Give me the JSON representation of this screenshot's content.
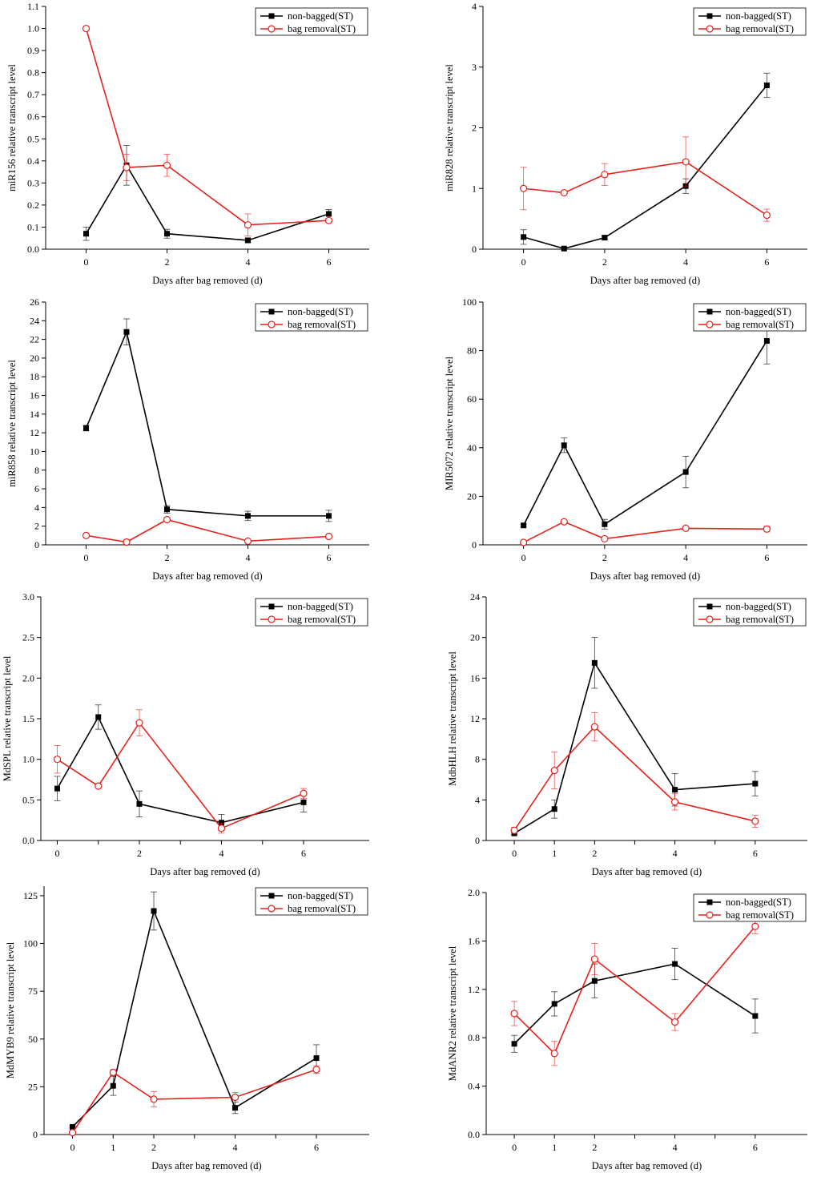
{
  "figure": {
    "legend": {
      "series1": "non-bagged(ST)",
      "series2": "bag removal(ST)"
    },
    "colors": {
      "series1": "#000000",
      "series2": "#e8201c",
      "axis": "#000000"
    }
  },
  "chart_data": [
    {
      "type": "line",
      "title": "",
      "xlabel": "Days after bag removed (d)",
      "ylabel": "miR156 relative transcript level",
      "x": [
        0,
        1,
        2,
        4,
        6
      ],
      "xlim": [
        -1,
        7
      ],
      "xticks": [
        0,
        2,
        4,
        6
      ],
      "ylim": [
        0,
        1.1
      ],
      "yticks": [
        0,
        0.1,
        0.2,
        0.3,
        0.4,
        0.5,
        0.6,
        0.7,
        0.8,
        0.9,
        1.0,
        1.1
      ],
      "ytick_labels": [
        "0.0",
        "0.1",
        "0.2",
        "0.3",
        "0.4",
        "0.5",
        "0.6",
        "0.7",
        "0.8",
        "0.9",
        "1.0",
        "1.1"
      ],
      "legend_position": "top-right",
      "series": [
        {
          "name": "non-bagged(ST)",
          "values": [
            0.07,
            0.38,
            0.07,
            0.04,
            0.16
          ],
          "errors": [
            0.03,
            0.09,
            0.02,
            0.01,
            0.02
          ]
        },
        {
          "name": "bag removal(ST)",
          "values": [
            1.0,
            0.37,
            0.38,
            0.11,
            0.13
          ],
          "errors": [
            0,
            0.06,
            0.05,
            0.05,
            0.01
          ]
        }
      ]
    },
    {
      "type": "line",
      "title": "",
      "xlabel": "Days after bag removed (d)",
      "ylabel": "miR828 relative transcript level",
      "x": [
        0,
        1,
        2,
        4,
        6
      ],
      "xlim": [
        -1,
        7
      ],
      "xticks": [
        0,
        2,
        4,
        6
      ],
      "ylim": [
        0,
        4
      ],
      "yticks": [
        0,
        1,
        2,
        3,
        4
      ],
      "ytick_labels": [
        "0",
        "1",
        "2",
        "3",
        "4"
      ],
      "legend_position": "top-right",
      "series": [
        {
          "name": "non-bagged(ST)",
          "values": [
            0.2,
            0.01,
            0.19,
            1.04,
            2.7
          ],
          "errors": [
            0.12,
            0.01,
            0.03,
            0.12,
            0.2
          ]
        },
        {
          "name": "bag removal(ST)",
          "values": [
            1.0,
            0.93,
            1.23,
            1.44,
            0.56
          ],
          "errors": [
            0.35,
            0.03,
            0.18,
            0.41,
            0.1
          ]
        }
      ]
    },
    {
      "type": "line",
      "title": "",
      "xlabel": "Days after bag removed (d)",
      "ylabel": "miR858 relative transcript level",
      "x": [
        0,
        1,
        2,
        4,
        6
      ],
      "xlim": [
        -1,
        7
      ],
      "xticks": [
        0,
        2,
        4,
        6
      ],
      "ylim": [
        0,
        26
      ],
      "yticks": [
        0,
        2,
        4,
        6,
        8,
        10,
        12,
        14,
        16,
        18,
        20,
        22,
        24,
        26
      ],
      "ytick_labels": [
        "0",
        "2",
        "4",
        "6",
        "8",
        "10",
        "12",
        "14",
        "16",
        "18",
        "20",
        "22",
        "24",
        "26"
      ],
      "legend_position": "top-right",
      "series": [
        {
          "name": "non-bagged(ST)",
          "values": [
            12.5,
            22.8,
            3.8,
            3.1,
            3.1
          ],
          "errors": [
            0.3,
            1.4,
            0.4,
            0.5,
            0.6
          ]
        },
        {
          "name": "bag removal(ST)",
          "values": [
            1.0,
            0.3,
            2.7,
            0.4,
            0.9
          ],
          "errors": [
            0.1,
            0.05,
            0.2,
            0.05,
            0.1
          ]
        }
      ]
    },
    {
      "type": "line",
      "title": "",
      "xlabel": "Days after bag removed (d)",
      "ylabel": "MIR5072 relative transcript level",
      "x": [
        0,
        1,
        2,
        4,
        6
      ],
      "xlim": [
        -1,
        7
      ],
      "xticks": [
        0,
        2,
        4,
        6
      ],
      "ylim": [
        0,
        100
      ],
      "yticks": [
        0,
        20,
        40,
        60,
        80,
        100
      ],
      "ytick_labels": [
        "0",
        "20",
        "40",
        "60",
        "80",
        "100"
      ],
      "legend_position": "top-right",
      "series": [
        {
          "name": "non-bagged(ST)",
          "values": [
            8,
            41,
            8.5,
            30,
            84
          ],
          "errors": [
            0.5,
            3,
            2,
            6.5,
            9.5
          ]
        },
        {
          "name": "bag removal(ST)",
          "values": [
            1,
            9.5,
            2.5,
            6.8,
            6.5
          ],
          "errors": [
            0.3,
            0.8,
            0.5,
            0.5,
            1.2
          ]
        }
      ]
    },
    {
      "type": "line",
      "title": "",
      "xlabel": "Days after bag removed (d)",
      "ylabel": "MdSPL relative transcript level",
      "x": [
        0,
        1,
        2,
        4,
        6
      ],
      "xlim": [
        -0.4,
        7.6
      ],
      "xticks": [
        0,
        1,
        2,
        3,
        4,
        5,
        6
      ],
      "xtick_labels": [
        "0",
        "",
        "2",
        "",
        "4",
        "",
        "6"
      ],
      "ylim": [
        0,
        3.0
      ],
      "yticks": [
        0,
        0.5,
        1.0,
        1.5,
        2.0,
        2.5,
        3.0
      ],
      "ytick_labels": [
        "0.0",
        "0.5",
        "1.0",
        "1.5",
        "2.0",
        "2.5",
        "3.0"
      ],
      "legend_position": "top-right",
      "series": [
        {
          "name": "non-bagged(ST)",
          "values": [
            0.64,
            1.52,
            0.45,
            0.22,
            0.47
          ],
          "errors": [
            0.15,
            0.15,
            0.16,
            0.1,
            0.12
          ]
        },
        {
          "name": "bag removal(ST)",
          "values": [
            1.0,
            0.67,
            1.45,
            0.15,
            0.58
          ],
          "errors": [
            0.17,
            0.02,
            0.16,
            0.06,
            0.06
          ]
        }
      ]
    },
    {
      "type": "line",
      "title": "",
      "xlabel": "Days after bag removed (d)",
      "ylabel": "MdbHLH relative transcript level",
      "x": [
        0,
        1,
        2,
        4,
        6
      ],
      "xlim": [
        -0.7,
        7.3
      ],
      "xticks": [
        0,
        1,
        2,
        3,
        4,
        5,
        6
      ],
      "xtick_labels": [
        "0",
        "1",
        "2",
        "",
        "4",
        "",
        "6"
      ],
      "ylim": [
        0,
        24
      ],
      "yticks": [
        0,
        4,
        8,
        12,
        16,
        20,
        24
      ],
      "ytick_labels": [
        "0",
        "4",
        "8",
        "12",
        "16",
        "20",
        "24"
      ],
      "legend_position": "top-right",
      "series": [
        {
          "name": "non-bagged(ST)",
          "values": [
            0.7,
            3.1,
            17.5,
            5.0,
            5.6
          ],
          "errors": [
            0.1,
            0.9,
            2.5,
            1.6,
            1.2
          ]
        },
        {
          "name": "bag removal(ST)",
          "values": [
            1.0,
            6.9,
            11.2,
            3.8,
            1.9
          ],
          "errors": [
            0.3,
            1.8,
            1.4,
            0.8,
            0.6
          ]
        }
      ]
    },
    {
      "type": "line",
      "title": "",
      "xlabel": "Days after bag removed (d)",
      "ylabel": "MdMYB9 relative transcript level",
      "x": [
        0,
        1,
        2,
        4,
        6
      ],
      "xlim": [
        -0.7,
        7.3
      ],
      "xticks": [
        0,
        1,
        2,
        3,
        4,
        5,
        6
      ],
      "xtick_labels": [
        "0",
        "1",
        "2",
        "",
        "4",
        "",
        "6"
      ],
      "ylim": [
        0,
        130
      ],
      "yticks": [
        0,
        25,
        50,
        75,
        100,
        125
      ],
      "ytick_labels": [
        "0",
        "25",
        "50",
        "75",
        "100",
        "125"
      ],
      "legend_position": "top-right",
      "series": [
        {
          "name": "non-bagged(ST)",
          "values": [
            4,
            25.5,
            117,
            14,
            40
          ],
          "errors": [
            0.5,
            5,
            10,
            3,
            7
          ]
        },
        {
          "name": "bag removal(ST)",
          "values": [
            1,
            32.5,
            18.5,
            19.5,
            34
          ],
          "errors": [
            0.2,
            1.5,
            4,
            2.5,
            2
          ]
        }
      ]
    },
    {
      "type": "line",
      "title": "",
      "xlabel": "Days after bag removed (d)",
      "ylabel": "MdANR2 relative transcript level",
      "x": [
        0,
        1,
        2,
        4,
        6
      ],
      "xlim": [
        -0.7,
        7.3
      ],
      "xticks": [
        0,
        1,
        2,
        3,
        4,
        5,
        6
      ],
      "xtick_labels": [
        "0",
        "1",
        "2",
        "",
        "4",
        "",
        "6"
      ],
      "ylim": [
        0,
        2.0
      ],
      "yticks": [
        0,
        0.4,
        0.8,
        1.2,
        1.6,
        2.0
      ],
      "ytick_labels": [
        "0.0",
        "0.4",
        "0.8",
        "1.2",
        "1.6",
        "2.0"
      ],
      "legend_position": "top-right",
      "series": [
        {
          "name": "non-bagged(ST)",
          "values": [
            0.75,
            1.08,
            1.27,
            1.41,
            0.98
          ],
          "errors": [
            0.07,
            0.1,
            0.14,
            0.13,
            0.14
          ]
        },
        {
          "name": "bag removal(ST)",
          "values": [
            1.0,
            0.67,
            1.45,
            0.93,
            1.72
          ],
          "errors": [
            0.1,
            0.1,
            0.13,
            0.07,
            0.06
          ]
        }
      ]
    }
  ]
}
